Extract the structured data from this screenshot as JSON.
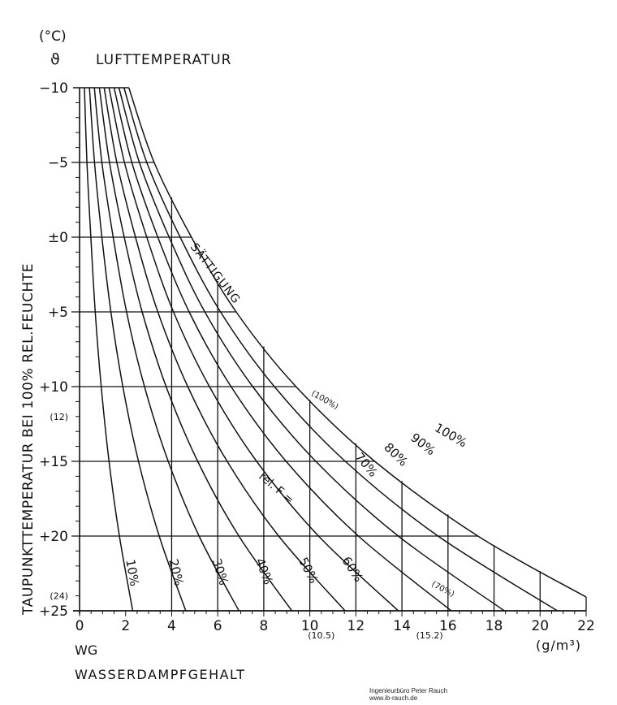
{
  "chart_data": {
    "type": "line",
    "title": "",
    "top_unit": "(°C)",
    "top_symbol": "ϑ",
    "top_label": "LUFTTEMPERATUR",
    "ylabel": "TAUPUNKTTEMPERATUR BEI 100% REL.FEUCHTE",
    "xlabel_short": "WG",
    "xlabel": "WASSERDAMPFGEHALT",
    "xunit": "(g/m³)",
    "xlim": [
      0,
      22
    ],
    "ylim": [
      -10,
      25
    ],
    "y_inverted": true,
    "x_ticks": [
      "0",
      "2",
      "4",
      "6",
      "8",
      "10",
      "12",
      "14",
      "16",
      "18",
      "20",
      "22"
    ],
    "x_extra_labels": [
      {
        "x": 10.5,
        "text": "(10.5)"
      },
      {
        "x": 15.2,
        "text": "(15.2)"
      }
    ],
    "y_ticks": [
      {
        "y": -10,
        "text": "−10"
      },
      {
        "y": -5,
        "text": "−5"
      },
      {
        "y": 0,
        "text": "±0"
      },
      {
        "y": 5,
        "text": "+5"
      },
      {
        "y": 10,
        "text": "+10"
      },
      {
        "y": 15,
        "text": "+15"
      },
      {
        "y": 20,
        "text": "+20"
      },
      {
        "y": 25,
        "text": "+25"
      }
    ],
    "y_extra_labels": [
      {
        "y": 12,
        "text": "(12)"
      },
      {
        "y": 24,
        "text": "(24)"
      }
    ],
    "grid": true,
    "series": [
      {
        "name": "10%",
        "values": [
          [
            0.21,
            -10
          ],
          [
            0.32,
            -5
          ],
          [
            0.49,
            0
          ],
          [
            0.68,
            5
          ],
          [
            0.94,
            10
          ],
          [
            1.28,
            15
          ],
          [
            1.73,
            20
          ],
          [
            2.31,
            25
          ]
        ]
      },
      {
        "name": "20%",
        "values": [
          [
            0.43,
            -10
          ],
          [
            0.65,
            -5
          ],
          [
            0.97,
            0
          ],
          [
            1.36,
            5
          ],
          [
            1.88,
            10
          ],
          [
            2.56,
            15
          ],
          [
            3.46,
            20
          ],
          [
            4.61,
            25
          ]
        ]
      },
      {
        "name": "30%",
        "values": [
          [
            0.64,
            -10
          ],
          [
            0.97,
            -5
          ],
          [
            1.46,
            0
          ],
          [
            2.04,
            5
          ],
          [
            2.82,
            10
          ],
          [
            3.85,
            15
          ],
          [
            5.19,
            20
          ],
          [
            6.92,
            25
          ]
        ]
      },
      {
        "name": "40%",
        "values": [
          [
            0.86,
            -10
          ],
          [
            1.3,
            -5
          ],
          [
            1.94,
            0
          ],
          [
            2.72,
            5
          ],
          [
            3.76,
            10
          ],
          [
            5.13,
            15
          ],
          [
            6.92,
            20
          ],
          [
            9.22,
            25
          ]
        ]
      },
      {
        "name": "50%",
        "values": [
          [
            1.07,
            -10
          ],
          [
            1.62,
            -5
          ],
          [
            2.43,
            0
          ],
          [
            3.4,
            5
          ],
          [
            4.7,
            10
          ],
          [
            6.41,
            15
          ],
          [
            8.65,
            20
          ],
          [
            11.53,
            25
          ]
        ]
      },
      {
        "name": "60%",
        "values": [
          [
            1.28,
            -10
          ],
          [
            1.95,
            -5
          ],
          [
            2.92,
            0
          ],
          [
            4.08,
            5
          ],
          [
            5.64,
            10
          ],
          [
            7.69,
            15
          ],
          [
            10.38,
            20
          ],
          [
            13.84,
            25
          ]
        ]
      },
      {
        "name": "70%",
        "values": [
          [
            1.5,
            -10
          ],
          [
            2.27,
            -5
          ],
          [
            3.4,
            0
          ],
          [
            4.76,
            5
          ],
          [
            6.58,
            10
          ],
          [
            8.97,
            15
          ],
          [
            12.11,
            20
          ],
          [
            16.14,
            25
          ]
        ]
      },
      {
        "name": "80%",
        "values": [
          [
            1.71,
            -10
          ],
          [
            2.6,
            -5
          ],
          [
            3.89,
            0
          ],
          [
            5.44,
            5
          ],
          [
            7.52,
            10
          ],
          [
            10.26,
            15
          ],
          [
            13.84,
            20
          ],
          [
            18.45,
            25
          ]
        ]
      },
      {
        "name": "90%",
        "values": [
          [
            1.93,
            -10
          ],
          [
            2.92,
            -5
          ],
          [
            4.37,
            0
          ],
          [
            6.12,
            5
          ],
          [
            8.46,
            10
          ],
          [
            11.54,
            15
          ],
          [
            15.57,
            20
          ],
          [
            20.75,
            25
          ]
        ]
      },
      {
        "name": "100%",
        "values": [
          [
            2.14,
            -10
          ],
          [
            3.24,
            -5
          ],
          [
            4.86,
            0
          ],
          [
            6.8,
            5
          ],
          [
            9.4,
            10
          ],
          [
            12.82,
            15
          ],
          [
            17.3,
            20
          ],
          [
            23.06,
            25
          ]
        ]
      }
    ],
    "annotations": {
      "saturation": "SÄTTIGUNG",
      "rel_f": "rel. F =",
      "p100_paren": "(100%)",
      "p70_paren": "(70%)"
    }
  },
  "footer": {
    "line1": "Ingenieurbüro Peter Rauch",
    "line2": "www.ib-rauch.de"
  }
}
